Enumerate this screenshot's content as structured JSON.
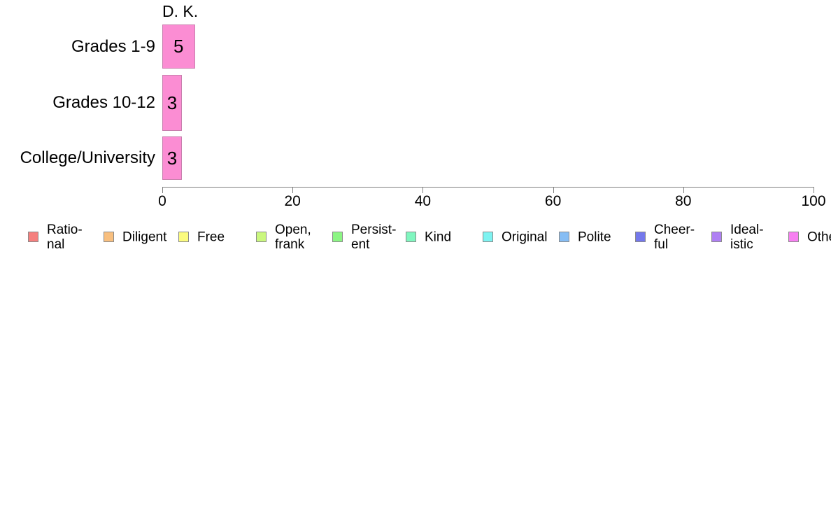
{
  "chart_data": {
    "type": "bar",
    "orientation": "horizontal",
    "title": "D. K.",
    "categories": [
      "Grades 1-9",
      "Grades 10-12",
      "College/University"
    ],
    "values": [
      5,
      3,
      3
    ],
    "bar_value_labels": [
      "5",
      "3",
      "3"
    ],
    "xlabel": "",
    "ylabel": "",
    "xlim": [
      0,
      100
    ],
    "x_ticks": [
      0,
      20,
      40,
      60,
      80,
      100
    ],
    "grid": false,
    "bar_color": "#FB8DD3",
    "bar_border_color": "#C87FAD",
    "axis_color": "#808080",
    "legend_position": "bottom",
    "legend": [
      {
        "name": "rational",
        "label": "Ratio-\nnal",
        "color": "#F5807E"
      },
      {
        "name": "diligent",
        "label": "Diligent",
        "color": "#F8BF7F"
      },
      {
        "name": "free",
        "label": "Free",
        "color": "#FBFB7E"
      },
      {
        "name": "open-frank",
        "label": "Open,\nfrank",
        "color": "#CAF77E"
      },
      {
        "name": "persistent",
        "label": "Persist-\nent",
        "color": "#8CF584"
      },
      {
        "name": "kind",
        "label": "Kind",
        "color": "#80F6BF"
      },
      {
        "name": "original",
        "label": "Original",
        "color": "#7EF3F1"
      },
      {
        "name": "polite",
        "label": "Polite",
        "color": "#86BDF4"
      },
      {
        "name": "cheerful",
        "label": "Cheer-\nful",
        "color": "#7478EB"
      },
      {
        "name": "idealistic",
        "label": "Ideal-\nistic",
        "color": "#AF80F3"
      },
      {
        "name": "other",
        "label": "Other",
        "color": "#F780F1"
      }
    ]
  }
}
